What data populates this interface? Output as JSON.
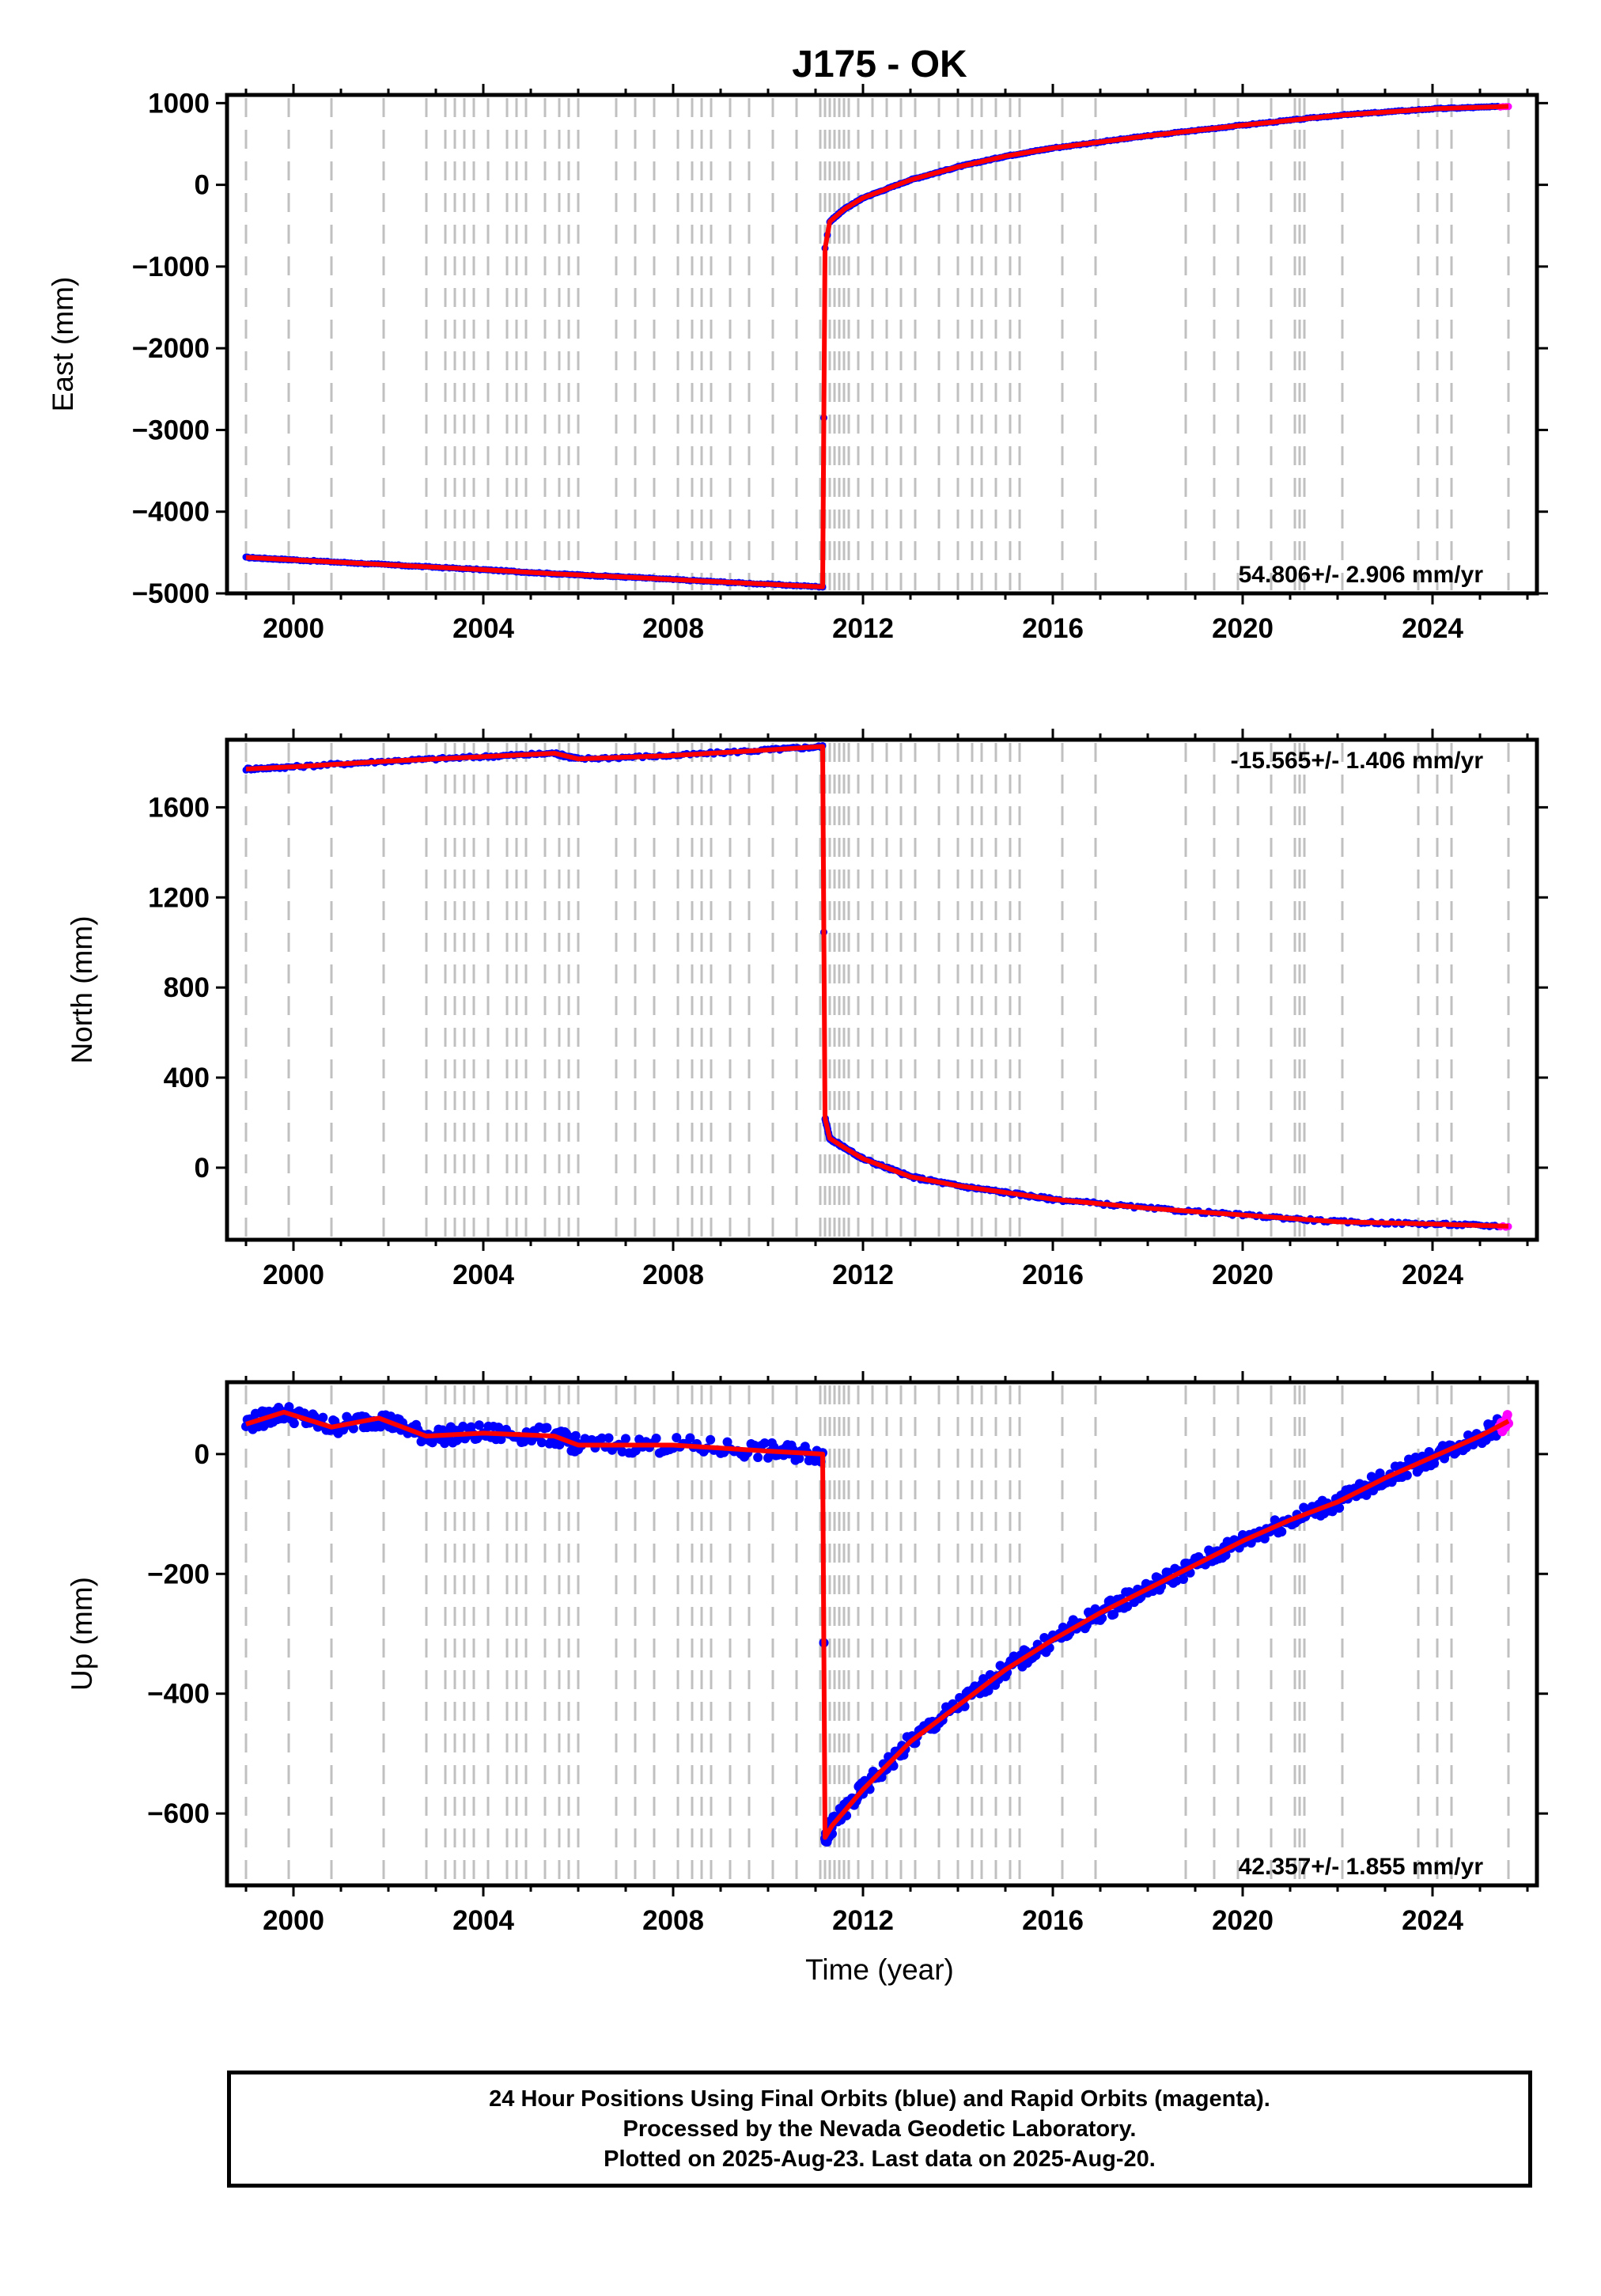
{
  "title": "J175 - OK",
  "x_axis_label": "Time (year)",
  "footer": {
    "line1": "24 Hour Positions Using Final Orbits (blue) and Rapid Orbits (magenta).",
    "line2": "Processed by the Nevada Geodetic Laboratory.",
    "line3": "Plotted on 2025-Aug-23. Last data on 2025-Aug-20."
  },
  "colors": {
    "final": "#0000ff",
    "rapid": "#ff00ff",
    "model": "#ff0000",
    "steps": "#c0c0c0"
  },
  "chart_data": [
    {
      "type": "scatter",
      "component": "East",
      "ylabel": "East (mm)",
      "rate": "54.806+/- 2.906 mm/yr",
      "xlim": [
        1998.6,
        2026.2
      ],
      "ylim": [
        -5000,
        1100
      ],
      "xticks": [
        2000,
        2004,
        2008,
        2012,
        2016,
        2020,
        2024
      ],
      "yticks": [
        -5000,
        -4000,
        -3000,
        -2000,
        -1000,
        0,
        1000
      ],
      "series": [
        {
          "x": [
            1999.0,
            2000.0,
            2002.0,
            2004.0,
            2005.5,
            2007.0,
            2009.0,
            2011.15,
            2011.2,
            2011.3,
            2011.6,
            2012.0,
            2013.0,
            2014.0,
            2015.0,
            2016.0,
            2018.0,
            2020.0,
            2022.0,
            2024.0,
            2025.6
          ],
          "y": [
            -4560,
            -4590,
            -4650,
            -4710,
            -4760,
            -4800,
            -4860,
            -4920,
            -780,
            -450,
            -300,
            -160,
            60,
            220,
            350,
            450,
            600,
            730,
            850,
            930,
            960
          ]
        }
      ],
      "offsets": [
        1999.0,
        1999.9,
        2000.8,
        2001.9,
        2002.8,
        2003.2,
        2003.4,
        2003.6,
        2003.8,
        2004.1,
        2004.5,
        2004.7,
        2004.9,
        2005.3,
        2005.6,
        2005.8,
        2006.0,
        2006.8,
        2007.2,
        2007.6,
        2008.1,
        2008.4,
        2008.6,
        2008.8,
        2009.2,
        2009.6,
        2010.1,
        2010.6,
        2011.1,
        2011.2,
        2011.3,
        2011.4,
        2011.5,
        2011.6,
        2011.7,
        2011.9,
        2012.2,
        2012.5,
        2012.8,
        2013.1,
        2013.6,
        2014.0,
        2014.3,
        2014.5,
        2014.8,
        2015.1,
        2015.3,
        2016.2,
        2016.9,
        2018.8,
        2019.4,
        2019.9,
        2020.6,
        2021.1,
        2021.2,
        2021.3,
        2022.1,
        2023.7,
        2024.1,
        2024.4,
        2025.6
      ]
    },
    {
      "type": "scatter",
      "component": "North",
      "ylabel": "North (mm)",
      "rate": "-15.565+/- 1.406 mm/yr",
      "xlim": [
        1998.6,
        2026.2
      ],
      "ylim": [
        -320,
        1900
      ],
      "xticks": [
        2000,
        2004,
        2008,
        2012,
        2016,
        2020,
        2024
      ],
      "yticks": [
        0,
        400,
        800,
        1200,
        1600
      ],
      "series": [
        {
          "x": [
            1999.0,
            2000.0,
            2002.0,
            2004.0,
            2005.5,
            2006.0,
            2008.0,
            2010.0,
            2011.15,
            2011.2,
            2011.3,
            2011.6,
            2012.0,
            2013.0,
            2014.0,
            2015.0,
            2016.0,
            2018.0,
            2020.0,
            2022.0,
            2024.0,
            2025.6
          ],
          "y": [
            1770,
            1780,
            1805,
            1825,
            1840,
            1815,
            1830,
            1855,
            1870,
            220,
            130,
            90,
            40,
            -40,
            -80,
            -110,
            -140,
            -180,
            -210,
            -240,
            -250,
            -260
          ]
        }
      ],
      "offsets": [
        1999.0,
        1999.9,
        2000.8,
        2001.9,
        2002.8,
        2003.2,
        2003.4,
        2003.6,
        2003.8,
        2004.1,
        2004.5,
        2004.7,
        2004.9,
        2005.3,
        2005.6,
        2005.8,
        2006.0,
        2006.8,
        2007.2,
        2007.6,
        2008.1,
        2008.4,
        2008.6,
        2008.8,
        2009.2,
        2009.6,
        2010.1,
        2010.6,
        2011.1,
        2011.2,
        2011.3,
        2011.4,
        2011.5,
        2011.6,
        2011.7,
        2011.9,
        2012.2,
        2012.5,
        2012.8,
        2013.1,
        2013.6,
        2014.0,
        2014.3,
        2014.5,
        2014.8,
        2015.1,
        2015.3,
        2016.2,
        2016.9,
        2018.8,
        2019.4,
        2019.9,
        2020.6,
        2021.1,
        2021.2,
        2021.3,
        2022.1,
        2023.7,
        2024.1,
        2024.4,
        2025.6
      ]
    },
    {
      "type": "scatter",
      "component": "Up",
      "ylabel": "Up (mm)",
      "rate": "42.357+/- 1.855 mm/yr",
      "xlim": [
        1998.6,
        2026.2
      ],
      "ylim": [
        -720,
        120
      ],
      "xticks": [
        2000,
        2004,
        2008,
        2012,
        2016,
        2020,
        2024
      ],
      "yticks": [
        -600,
        -400,
        -200,
        0
      ],
      "series": [
        {
          "x": [
            1999.0,
            1999.8,
            2000.8,
            2001.8,
            2002.8,
            2004.0,
            2005.5,
            2006.0,
            2008.0,
            2010.0,
            2011.15,
            2011.2,
            2011.35,
            2012.0,
            2013.0,
            2014.0,
            2015.0,
            2016.0,
            2017.0,
            2018.0,
            2019.0,
            2020.0,
            2021.0,
            2022.0,
            2023.0,
            2024.0,
            2025.0,
            2025.6
          ],
          "y": [
            50,
            70,
            45,
            60,
            30,
            35,
            30,
            15,
            15,
            5,
            0,
            -640,
            -620,
            -560,
            -480,
            -420,
            -360,
            -310,
            -265,
            -225,
            -185,
            -145,
            -110,
            -80,
            -40,
            -5,
            30,
            55
          ]
        }
      ],
      "offsets": [
        1999.0,
        1999.9,
        2000.8,
        2001.9,
        2002.8,
        2003.2,
        2003.4,
        2003.6,
        2003.8,
        2004.1,
        2004.5,
        2004.7,
        2004.9,
        2005.3,
        2005.6,
        2005.8,
        2006.0,
        2006.8,
        2007.2,
        2007.6,
        2008.1,
        2008.4,
        2008.6,
        2008.8,
        2009.2,
        2009.6,
        2010.1,
        2010.6,
        2011.1,
        2011.2,
        2011.3,
        2011.4,
        2011.5,
        2011.6,
        2011.7,
        2011.9,
        2012.2,
        2012.5,
        2012.8,
        2013.1,
        2013.6,
        2014.0,
        2014.3,
        2014.5,
        2014.8,
        2015.1,
        2015.3,
        2016.2,
        2016.9,
        2018.8,
        2019.4,
        2019.9,
        2020.6,
        2021.1,
        2021.2,
        2021.3,
        2022.1,
        2023.7,
        2024.1,
        2024.4,
        2025.6
      ]
    }
  ]
}
